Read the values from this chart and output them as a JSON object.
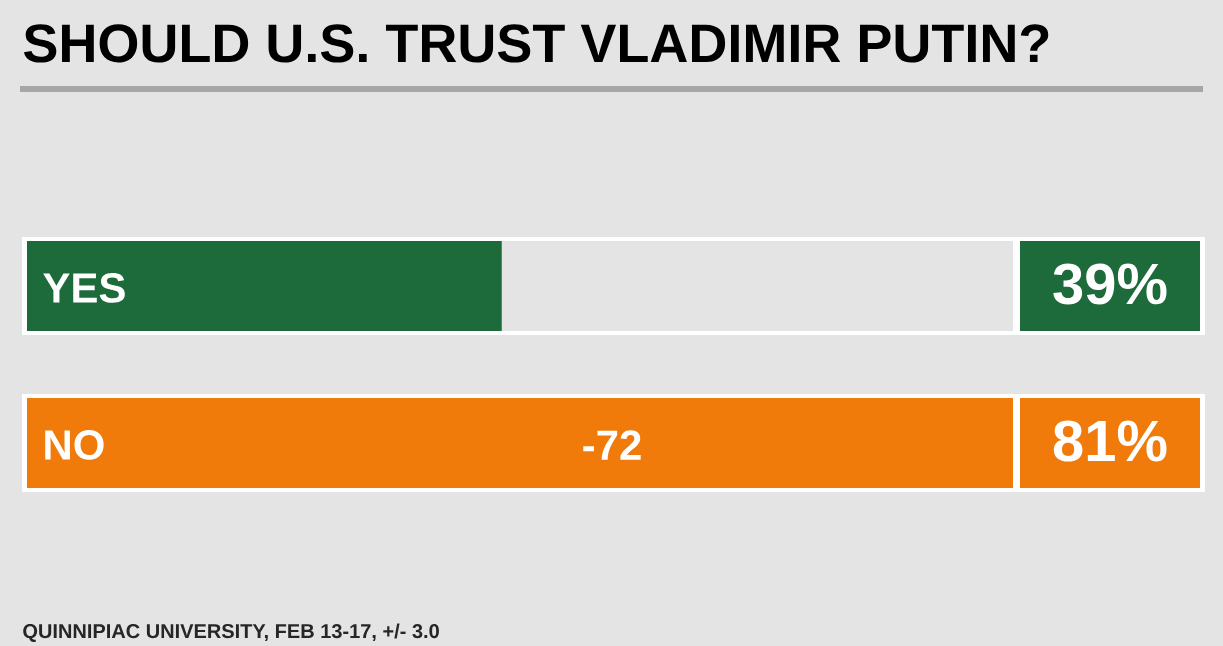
{
  "chart_data": {
    "type": "bar",
    "orientation": "horizontal",
    "title": "SHOULD U.S. TRUST VLADIMIR PUTIN?",
    "categories": [
      "YES",
      "NO"
    ],
    "values": [
      39,
      81
    ],
    "value_labels": [
      "39%",
      "81%"
    ],
    "colors": [
      "#1d6b3b",
      "#f07a0a"
    ],
    "annotations": [
      "-72",
      "QUINNIPIAC UNIVERSITY, FEB 13-17, +/- 3.0"
    ]
  }
}
